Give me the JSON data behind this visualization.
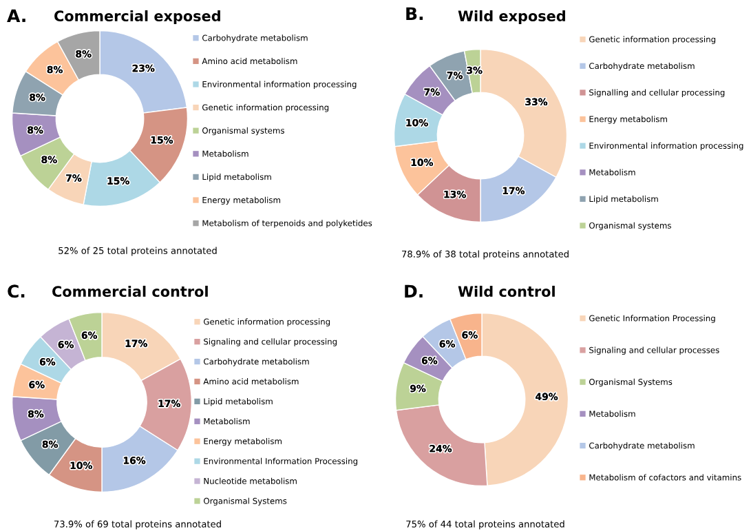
{
  "chart_data": [
    {
      "type": "donut",
      "title": "Commercial exposed",
      "annotations": [
        "A.",
        "52% of 25 total proteins annotated"
      ],
      "legend": "right",
      "categories": [
        "Carbohydrate metabolism",
        "Amino acid metabolism",
        "Environmental information processing",
        "Genetic information processing",
        "Organismal systems",
        "Metabolism",
        "Lipid metabolism",
        "Energy metabolism",
        "Metabolism of terpenoids and polyketides"
      ],
      "values": [
        23,
        15,
        15,
        7,
        8,
        8,
        8,
        8,
        8
      ],
      "value_labels": [
        "23%",
        "15%",
        "15%",
        "7%",
        "8%",
        "8%",
        "8%",
        "8%",
        "8%"
      ],
      "colors": [
        "#b4c7e7",
        "#d59484",
        "#add8e6",
        "#f8d5b8",
        "#bcd296",
        "#a590c0",
        "#8fa3b0",
        "#fcc39b",
        "#a6a6a6"
      ]
    },
    {
      "type": "donut",
      "title": "Wild exposed",
      "annotations": [
        "B.",
        "78.9% of 38 total proteins annotated"
      ],
      "legend": "right",
      "categories": [
        "Genetic information processing",
        "Carbohydrate metabolism",
        "Signalling and cellular processing",
        "Energy metabolism",
        "Environmental information processing",
        "Metabolism",
        "Lipid metabolism",
        "Organismal systems"
      ],
      "values": [
        33,
        17,
        13,
        10,
        10,
        7,
        7,
        3
      ],
      "value_labels": [
        "33%",
        "17%",
        "13%",
        "10%",
        "10%",
        "7%",
        "7%",
        "3%"
      ],
      "colors": [
        "#f8d5b8",
        "#b4c7e7",
        "#d09394",
        "#fcc39b",
        "#add8e6",
        "#a590c0",
        "#8fa3b0",
        "#bcd296"
      ]
    },
    {
      "type": "donut",
      "title": "Commercial control",
      "annotations": [
        "C.",
        "73.9% of 69 total proteins annotated"
      ],
      "legend": "right",
      "categories": [
        "Genetic information processing",
        "Signaling and cellular processing",
        "Carbohydrate metabolism",
        "Amino acid metabolism",
        "Lipid metabolism",
        "Metabolism",
        "Energy metabolism",
        "Environmental Information Processing",
        "Nucleotide metabolism",
        "Organismal Systems"
      ],
      "values": [
        17,
        17,
        16,
        10,
        8,
        8,
        6,
        6,
        6,
        6
      ],
      "value_labels": [
        "17%",
        "17%",
        "16%",
        "10%",
        "8%",
        "8%",
        "6%",
        "6%",
        "6%",
        "6%"
      ],
      "colors": [
        "#f8d5b8",
        "#d9a0a0",
        "#b4c7e7",
        "#d59484",
        "#829ba6",
        "#a590c0",
        "#fcc39b",
        "#add8e6",
        "#c5b4d4",
        "#bcd296"
      ]
    },
    {
      "type": "donut",
      "title": "Wild control",
      "annotations": [
        "D.",
        "75% of 44 total proteins annotated"
      ],
      "legend": "right",
      "categories": [
        "Genetic Information Processing",
        "Signaling and cellular processes",
        "Organismal Systems",
        "Metabolism",
        "Carbohydrate metabolism",
        "Metabolism of cofactors and vitamins"
      ],
      "values": [
        49,
        24,
        9,
        6,
        6,
        6
      ],
      "value_labels": [
        "49%",
        "24%",
        "9%",
        "6%",
        "6%",
        "6%"
      ],
      "colors": [
        "#f8d5b8",
        "#d9a0a0",
        "#bcd296",
        "#a590c0",
        "#b4c7e7",
        "#f8b48c"
      ]
    }
  ]
}
